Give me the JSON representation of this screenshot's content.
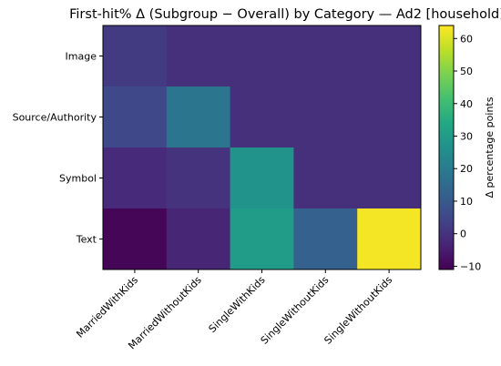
{
  "chart_data": {
    "type": "heatmap",
    "title": "First-hit% Δ (Subgroup − Overall) by Category — Ad2 [household]",
    "x_categories": [
      "MarriedWithKids",
      "MarriedWithoutKids",
      "SingleWithKids",
      "SingleWithoutKids",
      "SingleWithoutKids"
    ],
    "y_categories": [
      "Image",
      "Source/Authority",
      "Symbol",
      "Text"
    ],
    "values": [
      [
        2,
        -1,
        -1,
        -1,
        -1
      ],
      [
        5,
        18,
        -1,
        -1,
        -1
      ],
      [
        -2,
        0,
        27,
        -1,
        -1
      ],
      [
        -10,
        -3,
        30,
        12,
        63
      ]
    ],
    "colorbar": {
      "label": "Δ percentage points",
      "range": [
        -11,
        64
      ],
      "ticks": [
        -10,
        0,
        10,
        20,
        30,
        40,
        50,
        60
      ]
    },
    "colormap": "viridis"
  }
}
